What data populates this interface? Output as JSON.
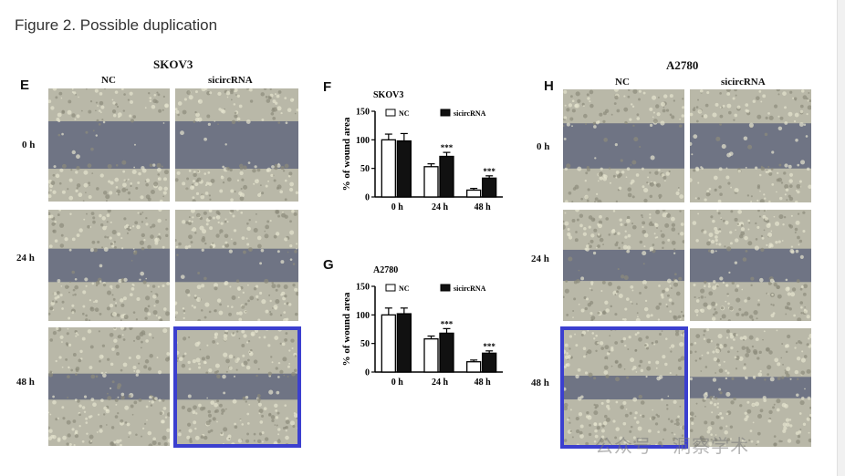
{
  "caption": "Figure 2. Possible duplication",
  "panels": {
    "E": "E",
    "F": "F",
    "G": "G",
    "H": "H"
  },
  "skov3": {
    "title": "SKOV3",
    "col_nc": "NC",
    "col_si": "sicircRNA",
    "rows": [
      "0 h",
      "24 h",
      "48 h"
    ]
  },
  "a2780": {
    "title": "A2780",
    "col_nc": "NC",
    "col_si": "sicircRNA",
    "rows": [
      "0 h",
      "24 h",
      "48 h"
    ]
  },
  "highlight_color": "#3b3fcf",
  "watermark": "公众号 · 洞察学术",
  "chart_data": [
    {
      "type": "bar",
      "title": "SKOV3",
      "ylabel": "% of wound area",
      "ylim": [
        0,
        150
      ],
      "yticks": [
        "0",
        "50",
        "100",
        "150"
      ],
      "categories": [
        "0 h",
        "24 h",
        "48 h"
      ],
      "series": [
        {
          "name": "NC",
          "values": [
            100,
            53,
            12
          ],
          "errors": [
            10,
            5,
            3
          ]
        },
        {
          "name": "sicircRNA",
          "values": [
            98,
            71,
            33
          ],
          "errors": [
            13,
            7,
            4
          ]
        }
      ],
      "annotations": [
        "",
        "***",
        "***"
      ],
      "legend": "top"
    },
    {
      "type": "bar",
      "title": "A2780",
      "ylabel": "% of wound area",
      "ylim": [
        0,
        150
      ],
      "yticks": [
        "0",
        "50",
        "100",
        "150"
      ],
      "categories": [
        "0 h",
        "24 h",
        "48 h"
      ],
      "series": [
        {
          "name": "NC",
          "values": [
            100,
            58,
            18
          ],
          "errors": [
            12,
            5,
            3
          ]
        },
        {
          "name": "sicircRNA",
          "values": [
            102,
            68,
            33
          ],
          "errors": [
            10,
            8,
            4
          ]
        }
      ],
      "annotations": [
        "",
        "***",
        "***"
      ],
      "legend": "top"
    }
  ]
}
